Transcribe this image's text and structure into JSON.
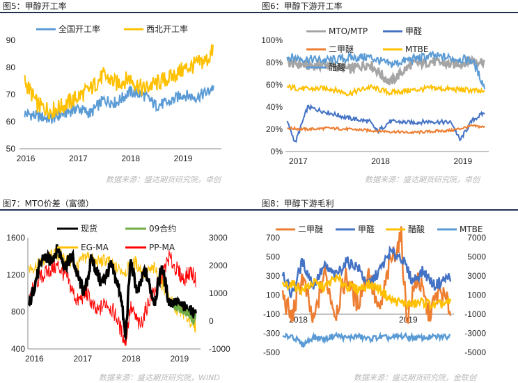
{
  "panels": [
    {
      "title": "图5：甲醇开工率",
      "source": "数据来源：盛达期货研究院，卓创"
    },
    {
      "title": "图6：甲醇下游开工率",
      "source": "数据来源：盛达期货研究院，卓创"
    },
    {
      "title": "图7：MTO价差（富德）",
      "source": "数据来源：盛达期货研究院，WIND"
    },
    {
      "title": "图8：甲醇下游毛利",
      "source": "数据来源：盛达期货研究院，金联创"
    }
  ],
  "chart_data": [
    {
      "type": "line",
      "x_ticks": [
        "2016",
        "2017",
        "2018",
        "2019"
      ],
      "ylim": [
        50,
        90
      ],
      "y_ticks": [
        50,
        60,
        70,
        80,
        90
      ],
      "legend_position": "top",
      "grid": false,
      "series": [
        {
          "name": "全国开工率",
          "color": "#5b9bd5",
          "values": [
            [
              2016.0,
              63
            ],
            [
              2016.25,
              62
            ],
            [
              2016.5,
              61
            ],
            [
              2016.75,
              63
            ],
            [
              2017.0,
              65
            ],
            [
              2017.25,
              63
            ],
            [
              2017.5,
              68
            ],
            [
              2017.75,
              67
            ],
            [
              2018.0,
              71
            ],
            [
              2018.25,
              70
            ],
            [
              2018.5,
              66
            ],
            [
              2018.75,
              67
            ],
            [
              2019.0,
              70
            ],
            [
              2019.25,
              69
            ],
            [
              2019.5,
              71
            ],
            [
              2019.6,
              73
            ]
          ]
        },
        {
          "name": "西北开工率",
          "color": "#ffc000",
          "values": [
            [
              2016.0,
              75
            ],
            [
              2016.25,
              66
            ],
            [
              2016.5,
              64
            ],
            [
              2016.75,
              66
            ],
            [
              2017.0,
              69
            ],
            [
              2017.25,
              72
            ],
            [
              2017.5,
              77
            ],
            [
              2017.75,
              74
            ],
            [
              2018.0,
              76
            ],
            [
              2018.25,
              72
            ],
            [
              2018.5,
              74
            ],
            [
              2018.75,
              76
            ],
            [
              2019.0,
              79
            ],
            [
              2019.25,
              81
            ],
            [
              2019.5,
              83
            ],
            [
              2019.6,
              87
            ]
          ]
        }
      ]
    },
    {
      "type": "line",
      "x_ticks": [
        "2017",
        "2018",
        "2019"
      ],
      "ylim": [
        0,
        100
      ],
      "y_ticks": [
        "0%",
        "20%",
        "40%",
        "60%",
        "80%",
        "100%"
      ],
      "legend_position": "top",
      "grid": false,
      "series": [
        {
          "name": "MTO/MTP",
          "color": "#a5a5a5",
          "values": [
            [
              2017.0,
              80
            ],
            [
              2017.25,
              77
            ],
            [
              2017.5,
              78
            ],
            [
              2017.75,
              74
            ],
            [
              2018.0,
              79
            ],
            [
              2018.25,
              62
            ],
            [
              2018.5,
              78
            ],
            [
              2018.75,
              81
            ],
            [
              2019.0,
              78
            ],
            [
              2019.25,
              82
            ],
            [
              2019.4,
              81
            ]
          ]
        },
        {
          "name": "甲醛",
          "color": "#4472c4",
          "values": [
            [
              2017.0,
              27
            ],
            [
              2017.1,
              8
            ],
            [
              2017.25,
              40
            ],
            [
              2017.5,
              35
            ],
            [
              2017.75,
              30
            ],
            [
              2018.0,
              27
            ],
            [
              2018.1,
              18
            ],
            [
              2018.25,
              27
            ],
            [
              2018.5,
              26
            ],
            [
              2018.75,
              27
            ],
            [
              2019.0,
              26
            ],
            [
              2019.1,
              10
            ],
            [
              2019.25,
              28
            ],
            [
              2019.4,
              35
            ]
          ]
        },
        {
          "name": "二甲醚",
          "color": "#ed7d31",
          "values": [
            [
              2017.0,
              21
            ],
            [
              2017.25,
              20
            ],
            [
              2017.5,
              21
            ],
            [
              2017.75,
              20
            ],
            [
              2018.0,
              19
            ],
            [
              2018.25,
              18
            ],
            [
              2018.5,
              17
            ],
            [
              2018.75,
              18
            ],
            [
              2019.0,
              19
            ],
            [
              2019.25,
              23
            ],
            [
              2019.4,
              22
            ]
          ]
        },
        {
          "name": "MTBE",
          "color": "#ffc000",
          "values": [
            [
              2017.0,
              58
            ],
            [
              2017.25,
              56
            ],
            [
              2017.5,
              57
            ],
            [
              2017.75,
              52
            ],
            [
              2018.0,
              58
            ],
            [
              2018.25,
              53
            ],
            [
              2018.5,
              55
            ],
            [
              2018.75,
              57
            ],
            [
              2019.0,
              56
            ],
            [
              2019.25,
              55
            ],
            [
              2019.4,
              53
            ]
          ]
        },
        {
          "name": "醋酸",
          "color": "#5b9bd5",
          "values": [
            [
              2017.0,
              85
            ],
            [
              2017.25,
              83
            ],
            [
              2017.5,
              82
            ],
            [
              2017.75,
              84
            ],
            [
              2018.0,
              85
            ],
            [
              2018.25,
              78
            ],
            [
              2018.5,
              83
            ],
            [
              2018.75,
              86
            ],
            [
              2019.0,
              84
            ],
            [
              2019.25,
              82
            ],
            [
              2019.4,
              58
            ]
          ]
        }
      ]
    },
    {
      "type": "line",
      "x_ticks": [
        "2016",
        "2017",
        "2018",
        "2019"
      ],
      "ylim_left": [
        400,
        1600
      ],
      "y_ticks_left": [
        400,
        800,
        1200,
        1600
      ],
      "ylim_right": [
        -1000,
        3000
      ],
      "y_ticks_right": [
        -1000,
        0,
        1000,
        2000,
        3000
      ],
      "legend_position": "top",
      "grid": false,
      "series": [
        {
          "name": "现货",
          "color": "#000000",
          "axis": "left",
          "values": [
            [
              2016.0,
              850
            ],
            [
              2016.15,
              1150
            ],
            [
              2016.3,
              1400
            ],
            [
              2016.45,
              1350
            ],
            [
              2016.6,
              1480
            ],
            [
              2016.75,
              1300
            ],
            [
              2016.9,
              1400
            ],
            [
              2017.0,
              1200
            ],
            [
              2017.15,
              1000
            ],
            [
              2017.3,
              1380
            ],
            [
              2017.5,
              1100
            ],
            [
              2017.7,
              1300
            ],
            [
              2017.9,
              1000
            ],
            [
              2018.0,
              500
            ],
            [
              2018.1,
              1350
            ],
            [
              2018.25,
              1000
            ],
            [
              2018.4,
              1250
            ],
            [
              2018.6,
              900
            ],
            [
              2018.75,
              1300
            ],
            [
              2018.9,
              900
            ],
            [
              2019.0,
              900
            ],
            [
              2019.2,
              850
            ],
            [
              2019.35,
              800
            ],
            [
              2019.45,
              780
            ]
          ]
        },
        {
          "name": "09合约",
          "color": "#70ad47",
          "axis": "left",
          "values": [
            [
              2019.0,
              850
            ],
            [
              2019.15,
              820
            ],
            [
              2019.3,
              780
            ],
            [
              2019.4,
              700
            ],
            [
              2019.45,
              760
            ]
          ]
        },
        {
          "name": "EG-MA",
          "color": "#ffc000",
          "axis": "right",
          "values": [
            [
              2016.0,
              1900
            ],
            [
              2016.2,
              2000
            ],
            [
              2016.4,
              2300
            ],
            [
              2016.6,
              2400
            ],
            [
              2016.8,
              2200
            ],
            [
              2017.0,
              2000
            ],
            [
              2017.2,
              2350
            ],
            [
              2017.4,
              2100
            ],
            [
              2017.6,
              2200
            ],
            [
              2017.8,
              1900
            ],
            [
              2018.0,
              1800
            ],
            [
              2018.2,
              2100
            ],
            [
              2018.4,
              1700
            ],
            [
              2018.6,
              1900
            ],
            [
              2018.8,
              1200
            ],
            [
              2019.0,
              500
            ],
            [
              2019.2,
              300
            ],
            [
              2019.35,
              0
            ],
            [
              2019.45,
              -200
            ]
          ]
        },
        {
          "name": "PP-MA",
          "color": "#ff0000",
          "axis": "right",
          "values": [
            [
              2016.0,
              900
            ],
            [
              2016.2,
              1500
            ],
            [
              2016.4,
              1800
            ],
            [
              2016.6,
              2000
            ],
            [
              2016.8,
              1500
            ],
            [
              2017.0,
              700
            ],
            [
              2017.2,
              1000
            ],
            [
              2017.4,
              300
            ],
            [
              2017.6,
              700
            ],
            [
              2017.8,
              200
            ],
            [
              2018.0,
              -800
            ],
            [
              2018.1,
              500
            ],
            [
              2018.3,
              -200
            ],
            [
              2018.5,
              800
            ],
            [
              2018.7,
              1400
            ],
            [
              2018.9,
              2300
            ],
            [
              2019.0,
              2000
            ],
            [
              2019.2,
              1500
            ],
            [
              2019.35,
              1800
            ],
            [
              2019.45,
              1500
            ]
          ]
        }
      ]
    },
    {
      "type": "line",
      "x_ticks": [
        "2018",
        "2019"
      ],
      "ylim_left": [
        -500,
        700
      ],
      "y_ticks_left": [
        -500,
        -300,
        -100,
        100,
        300,
        500,
        700
      ],
      "ylim_right": [
        -5000,
        7000
      ],
      "y_ticks_right": [
        -5000,
        -3000,
        -1000,
        1000,
        3000,
        5000,
        7000
      ],
      "legend_position": "top",
      "grid": false,
      "series": [
        {
          "name": "二甲醚",
          "color": "#ed7d31",
          "axis": "left",
          "values": [
            [
              2017.92,
              100
            ],
            [
              2018.0,
              -150
            ],
            [
              2018.1,
              300
            ],
            [
              2018.2,
              -200
            ],
            [
              2018.3,
              350
            ],
            [
              2018.4,
              -100
            ],
            [
              2018.5,
              300
            ],
            [
              2018.6,
              0
            ],
            [
              2018.7,
              350
            ],
            [
              2018.8,
              -100
            ],
            [
              2018.9,
              450
            ],
            [
              2019.0,
              700
            ],
            [
              2019.05,
              -150
            ],
            [
              2019.15,
              300
            ],
            [
              2019.25,
              -100
            ],
            [
              2019.35,
              150
            ],
            [
              2019.45,
              -50
            ]
          ]
        },
        {
          "name": "甲醛",
          "color": "#4472c4",
          "axis": "left",
          "values": [
            [
              2017.92,
              350
            ],
            [
              2018.0,
              100
            ],
            [
              2018.1,
              450
            ],
            [
              2018.2,
              200
            ],
            [
              2018.3,
              400
            ],
            [
              2018.4,
              300
            ],
            [
              2018.5,
              450
            ],
            [
              2018.6,
              400
            ],
            [
              2018.7,
              200
            ],
            [
              2018.8,
              350
            ],
            [
              2018.9,
              550
            ],
            [
              2019.0,
              500
            ],
            [
              2019.1,
              250
            ],
            [
              2019.2,
              350
            ],
            [
              2019.3,
              200
            ],
            [
              2019.45,
              300
            ]
          ]
        },
        {
          "name": "醋酸",
          "color": "#ffc000",
          "axis": "right",
          "values": [
            [
              2017.92,
              2000
            ],
            [
              2018.0,
              2200
            ],
            [
              2018.1,
              1500
            ],
            [
              2018.2,
              2300
            ],
            [
              2018.3,
              1800
            ],
            [
              2018.4,
              2800
            ],
            [
              2018.5,
              2000
            ],
            [
              2018.6,
              1600
            ],
            [
              2018.7,
              2100
            ],
            [
              2018.8,
              1700
            ],
            [
              2018.9,
              500
            ],
            [
              2019.0,
              200
            ],
            [
              2019.1,
              0
            ],
            [
              2019.2,
              300
            ],
            [
              2019.3,
              -100
            ],
            [
              2019.45,
              200
            ]
          ]
        },
        {
          "name": "MTBE",
          "color": "#5b9bd5",
          "axis": "right",
          "values": [
            [
              2017.92,
              -3500
            ],
            [
              2018.0,
              -3200
            ],
            [
              2018.1,
              -4200
            ],
            [
              2018.2,
              -3400
            ],
            [
              2018.3,
              -3600
            ],
            [
              2018.4,
              -3200
            ],
            [
              2018.5,
              -3500
            ],
            [
              2018.6,
              -3300
            ],
            [
              2018.7,
              -3600
            ],
            [
              2018.8,
              -3400
            ],
            [
              2018.9,
              -3500
            ],
            [
              2019.0,
              -3300
            ],
            [
              2019.15,
              -3500
            ],
            [
              2019.3,
              -3400
            ],
            [
              2019.45,
              -3300
            ]
          ]
        }
      ]
    }
  ]
}
